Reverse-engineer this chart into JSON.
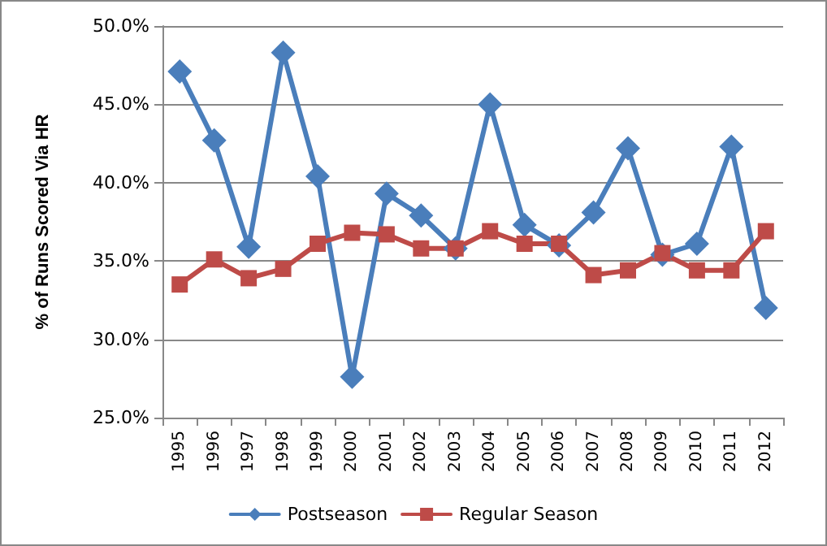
{
  "chart_data": {
    "type": "line",
    "ylabel": "% of Runs Scored Via HR",
    "categories": [
      "1995",
      "1996",
      "1997",
      "1998",
      "1999",
      "2000",
      "2001",
      "2002",
      "2003",
      "2004",
      "2005",
      "2006",
      "2007",
      "2008",
      "2009",
      "2010",
      "2011",
      "2012"
    ],
    "series": [
      {
        "name": "Postseason",
        "color": "#4a7ebb",
        "marker": "diamond",
        "values": [
          47.1,
          42.7,
          35.9,
          48.3,
          40.4,
          27.6,
          39.3,
          37.9,
          35.8,
          45.0,
          37.3,
          36.0,
          38.1,
          42.2,
          35.4,
          36.1,
          42.3,
          32.0
        ]
      },
      {
        "name": "Regular Season",
        "color": "#be4b48",
        "marker": "square",
        "values": [
          33.5,
          35.1,
          33.9,
          34.5,
          36.1,
          36.8,
          36.7,
          35.8,
          35.8,
          36.9,
          36.1,
          36.1,
          34.1,
          34.4,
          35.5,
          34.4,
          34.4,
          36.9
        ]
      }
    ],
    "ylim": [
      25,
      50
    ],
    "yticks": [
      {
        "value": 25,
        "label": "25.0%"
      },
      {
        "value": 30,
        "label": "30.0%"
      },
      {
        "value": 35,
        "label": "35.0%"
      },
      {
        "value": 40,
        "label": "40.0%"
      },
      {
        "value": 45,
        "label": "45.0%"
      },
      {
        "value": 50,
        "label": "50.0%"
      }
    ],
    "grid": "y",
    "legend": "bottom",
    "line_style": "solid"
  }
}
